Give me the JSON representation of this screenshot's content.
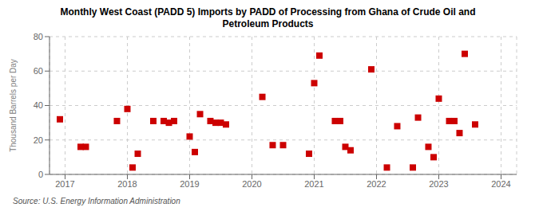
{
  "chart_data": {
    "type": "scatter",
    "title": "Monthly West Coast (PADD 5) Imports by PADD of Processing from Ghana of Crude Oil and\nPetroleum Products",
    "ylabel": "Thousand Barrels per Day",
    "annotations": [
      "Source: U.S. Energy Information Administration"
    ],
    "x": [
      2016.917,
      2017.25,
      2017.333,
      2017.833,
      2018.0,
      2018.083,
      2018.167,
      2018.417,
      2018.583,
      2018.667,
      2018.75,
      2019.0,
      2019.083,
      2019.167,
      2019.333,
      2019.417,
      2019.5,
      2019.583,
      2020.167,
      2020.333,
      2020.5,
      2020.917,
      2021.0,
      2021.083,
      2021.333,
      2021.417,
      2021.5,
      2021.583,
      2021.917,
      2022.167,
      2022.333,
      2022.583,
      2022.667,
      2022.833,
      2022.917,
      2023.0,
      2023.167,
      2023.25,
      2023.333,
      2023.417,
      2023.583
    ],
    "values": [
      32,
      16,
      16,
      31,
      38,
      4,
      12,
      31,
      31,
      30,
      31,
      22,
      13,
      35,
      31,
      30,
      30,
      29,
      45,
      17,
      17,
      12,
      53,
      69,
      31,
      31,
      16,
      14,
      61,
      4,
      28,
      4,
      33,
      16,
      10,
      44,
      31,
      31,
      24,
      70,
      29
    ],
    "color": "#cc0000",
    "marker": "square",
    "xlim": [
      2016.75,
      2024.25
    ],
    "ylim": [
      0,
      80
    ],
    "xticks": [
      2017,
      2018,
      2019,
      2020,
      2021,
      2022,
      2023,
      2024
    ],
    "yticks": [
      0,
      20,
      40,
      60,
      80
    ],
    "grid": true
  }
}
